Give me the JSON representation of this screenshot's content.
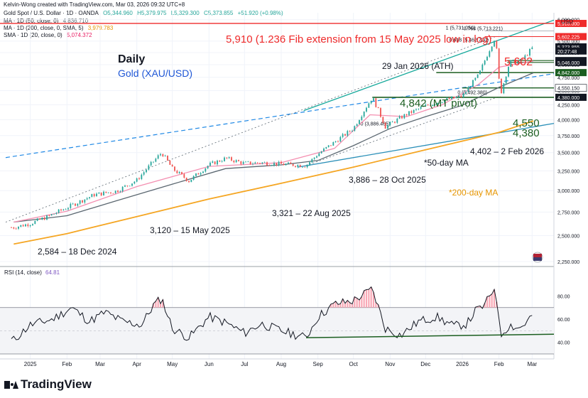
{
  "header": {
    "attribution": "Kelvin-Wong created with TradingView.com, Mar 03, 2026 09:32 UTC+8",
    "symbol_line": "Gold Spot / U.S. Dollar · 1D · OANDA",
    "ohlc": [
      "O5,344.960",
      "H5,379.975",
      "L5,329.300",
      "C5,373.855",
      "+51.920 (+0.98%)"
    ],
    "ma50_label": "MA · 1D (50, close, 0)",
    "ma50_value": "4,836.710",
    "ma200_label": "MA · 1D (200, close, 0, SMA, 5)",
    "ma200_value": "3,979.783",
    "sma20_label": "SMA · 1D (20, close, 0)",
    "sma20_value": "5,074.372",
    "currency": "USD"
  },
  "footer": {
    "brand": "TradingView"
  },
  "colors": {
    "up": "#26a69a",
    "down": "#ef5350",
    "ma50": "#5b6770",
    "ma200": "#f5a623",
    "sma20": "#f48fb1",
    "fib": "#ef2b2b",
    "pivot": "#1b5e20",
    "trend_blue": "#1e88e5",
    "channel_teal": "#14a89a",
    "rsi": "#131722",
    "rsi_fill": "#f8a9b6"
  },
  "chart_data": [
    {
      "type": "candlestick",
      "title": "Daily",
      "subtitle": "Gold (XAU/USD)",
      "y_scale": "log",
      "ylim": [
        2250,
        6100
      ],
      "x_tick_labels": [
        "2025",
        "Feb",
        "Mar",
        "Apr",
        "May",
        "Jun",
        "Jul",
        "Aug",
        "Sep",
        "Oct",
        "Nov",
        "Dec",
        "2026",
        "Feb",
        "Mar"
      ],
      "y_tick_labels": [
        "6,000.000",
        "5,500.000",
        "5,250.000",
        "5,000.000",
        "4,750.000",
        "4,500.000",
        "4,250.000",
        "4,000.000",
        "3,750.000",
        "3,500.000",
        "3,250.000",
        "3,000.000",
        "2,750.000",
        "2,500.000",
        "2,250.000"
      ],
      "y_tick_values": [
        6000,
        5500,
        5250,
        5000,
        4750,
        4500,
        4250,
        4000,
        3750,
        3500,
        3250,
        3000,
        2750,
        2500,
        2250
      ],
      "price_badges": [
        {
          "label": "5,910.000",
          "value": 5910,
          "bg": "#ef2b2b"
        },
        {
          "label": "5,602.225",
          "value": 5602.225,
          "bg": "#ef2b2b"
        },
        {
          "label": "5,373.855",
          "value": 5373.855,
          "bg": "#131722"
        },
        {
          "label": "20:27:48",
          "value": 5285,
          "bg": "#131722"
        },
        {
          "label": "5,084.280",
          "value": 5084.28,
          "bg": "#131722"
        },
        {
          "label": "5,046.000",
          "value": 5046,
          "bg": "#131722"
        },
        {
          "label": "4,842.000",
          "value": 4842,
          "bg": "#1b5e20"
        },
        {
          "label": "4,550.150",
          "value": 4550.15,
          "bg": "#ffffff"
        },
        {
          "label": "4,380.000",
          "value": 4380,
          "bg": "#131722"
        }
      ],
      "series": [
        {
          "name": "XAU/USD",
          "kind": "price",
          "points": [
            [
              "2024-12-18",
              2584
            ],
            [
              "2025-01-01",
              2625
            ],
            [
              "2025-01-15",
              2695
            ],
            [
              "2025-02-01",
              2800
            ],
            [
              "2025-02-24",
              2950
            ],
            [
              "2025-03-15",
              2995
            ],
            [
              "2025-04-01",
              3130
            ],
            [
              "2025-04-22",
              3500
            ],
            [
              "2025-05-01",
              3280
            ],
            [
              "2025-05-15",
              3120
            ],
            [
              "2025-06-01",
              3330
            ],
            [
              "2025-06-15",
              3420
            ],
            [
              "2025-07-01",
              3350
            ],
            [
              "2025-07-15",
              3360
            ],
            [
              "2025-08-01",
              3340
            ],
            [
              "2025-08-22",
              3321
            ],
            [
              "2025-09-01",
              3480
            ],
            [
              "2025-09-15",
              3650
            ],
            [
              "2025-10-01",
              3860
            ],
            [
              "2025-10-17",
              4380
            ],
            [
              "2025-10-28",
              3886
            ],
            [
              "2025-11-15",
              4090
            ],
            [
              "2025-12-01",
              4230
            ],
            [
              "2025-12-15",
              4320
            ],
            [
              "2026-01-01",
              4400
            ],
            [
              "2026-01-15",
              4800
            ],
            [
              "2026-01-29",
              5602
            ],
            [
              "2026-02-02",
              4402
            ],
            [
              "2026-02-10",
              5050
            ],
            [
              "2026-02-20",
              5080
            ],
            [
              "2026-03-02",
              5374
            ]
          ]
        },
        {
          "name": "MA 50",
          "kind": "line",
          "points": [
            [
              "2024-12-18",
              2640
            ],
            [
              "2025-02-01",
              2710
            ],
            [
              "2025-03-15",
              2880
            ],
            [
              "2025-05-01",
              3080
            ],
            [
              "2025-06-15",
              3280
            ],
            [
              "2025-08-01",
              3330
            ],
            [
              "2025-09-01",
              3390
            ],
            [
              "2025-10-01",
              3600
            ],
            [
              "2025-11-01",
              3860
            ],
            [
              "2025-12-01",
              4050
            ],
            [
              "2026-01-01",
              4240
            ],
            [
              "2026-02-01",
              4560
            ],
            [
              "2026-03-02",
              4837
            ]
          ]
        },
        {
          "name": "MA 200",
          "kind": "line",
          "points": [
            [
              "2024-12-18",
              2415
            ],
            [
              "2025-02-01",
              2520
            ],
            [
              "2025-04-01",
              2700
            ],
            [
              "2025-06-01",
              2900
            ],
            [
              "2025-08-01",
              3090
            ],
            [
              "2025-10-01",
              3300
            ],
            [
              "2025-12-01",
              3540
            ],
            [
              "2026-02-01",
              3800
            ],
            [
              "2026-03-02",
              3980
            ]
          ]
        },
        {
          "name": "SMA 20",
          "kind": "line",
          "points": [
            [
              "2024-12-18",
              2640
            ],
            [
              "2025-02-01",
              2760
            ],
            [
              "2025-04-01",
              3050
            ],
            [
              "2025-06-01",
              3310
            ],
            [
              "2025-08-01",
              3360
            ],
            [
              "2025-09-15",
              3560
            ],
            [
              "2025-10-15",
              4080
            ],
            [
              "2025-11-15",
              4050
            ],
            [
              "2025-12-15",
              4250
            ],
            [
              "2026-01-15",
              4620
            ],
            [
              "2026-02-01",
              4950
            ],
            [
              "2026-03-02",
              5074
            ]
          ]
        }
      ],
      "levels": [
        {
          "value": 5910,
          "label": "5,910 (1.236 Fib extension from 15 May 2025 low in log)"
        },
        {
          "value": 5602,
          "label": "5,602"
        },
        {
          "value": 4842,
          "label": "4,842 (MT pivot)"
        },
        {
          "value": 4550,
          "label": "4,550"
        },
        {
          "value": 4380,
          "label": "4,380"
        }
      ],
      "fib_labels": [
        "1 (5,731.050)",
        "0.764 (5,713.221)",
        "0.618 (5,462.720)",
        "0 (5,492.380)",
        "0 (3,886.465)"
      ],
      "annotations": [
        "29 Jan 2026 (ATH)",
        "4,402 – 2 Feb 2026",
        "*50-day MA",
        "3,886 – 28 Oct 2025",
        "*200-day MA",
        "3,321 – 22 Aug 2025",
        "3,120 – 15 May 2025",
        "2,584 – 18 Dec 2024"
      ]
    },
    {
      "type": "line",
      "title": "RSI (14, close)",
      "value_label": "64.81",
      "ylim": [
        30,
        95
      ],
      "y_tick_labels": [
        "80.00",
        "60.00",
        "40.00"
      ],
      "y_tick_values": [
        80,
        60,
        40
      ],
      "bands": [
        70,
        30
      ],
      "series": [
        {
          "name": "RSI",
          "points": [
            [
              "2024-12-18",
              42
            ],
            [
              "2025-01-01",
              55
            ],
            [
              "2025-01-20",
              60
            ],
            [
              "2025-02-05",
              70
            ],
            [
              "2025-02-20",
              58
            ],
            [
              "2025-03-05",
              66
            ],
            [
              "2025-03-20",
              58
            ],
            [
              "2025-04-05",
              55
            ],
            [
              "2025-04-15",
              72
            ],
            [
              "2025-04-22",
              78
            ],
            [
              "2025-05-01",
              52
            ],
            [
              "2025-05-15",
              44
            ],
            [
              "2025-06-01",
              62
            ],
            [
              "2025-06-15",
              57
            ],
            [
              "2025-07-01",
              48
            ],
            [
              "2025-07-15",
              56
            ],
            [
              "2025-08-01",
              50
            ],
            [
              "2025-08-22",
              44
            ],
            [
              "2025-09-01",
              62
            ],
            [
              "2025-09-15",
              73
            ],
            [
              "2025-10-01",
              76
            ],
            [
              "2025-10-17",
              86
            ],
            [
              "2025-10-28",
              52
            ],
            [
              "2025-11-10",
              46
            ],
            [
              "2025-11-25",
              58
            ],
            [
              "2025-12-10",
              62
            ],
            [
              "2025-12-25",
              54
            ],
            [
              "2026-01-05",
              56
            ],
            [
              "2026-01-12",
              67
            ],
            [
              "2026-01-20",
              72
            ],
            [
              "2026-01-29",
              89
            ],
            [
              "2026-02-02",
              46
            ],
            [
              "2026-02-10",
              55
            ],
            [
              "2026-02-18",
              52
            ],
            [
              "2026-02-25",
              58
            ],
            [
              "2026-03-02",
              65
            ]
          ]
        }
      ]
    }
  ],
  "text_annotations": {
    "title": "Daily",
    "subtitle": "Gold (XAU/USD)",
    "fib_line": "5,910 (1.236 Fib extension from 15 May 2025 low in log)",
    "level_5602": "5,602",
    "ath": "29 Jan 2026 (ATH)",
    "pivot": "4,842 (MT pivot)",
    "level_4550": "4,550",
    "level_4380": "4,380",
    "low_feb": "4,402 – 2 Feb 2026",
    "ma50_note": "*50-day MA",
    "low_oct": "3,886 – 28 Oct 2025",
    "ma200_note": "*200-day MA",
    "low_aug": "3,321 – 22 Aug 2025",
    "low_may": "3,120 – 15 May 2025",
    "low_dec": "2,584 – 18 Dec 2024"
  }
}
